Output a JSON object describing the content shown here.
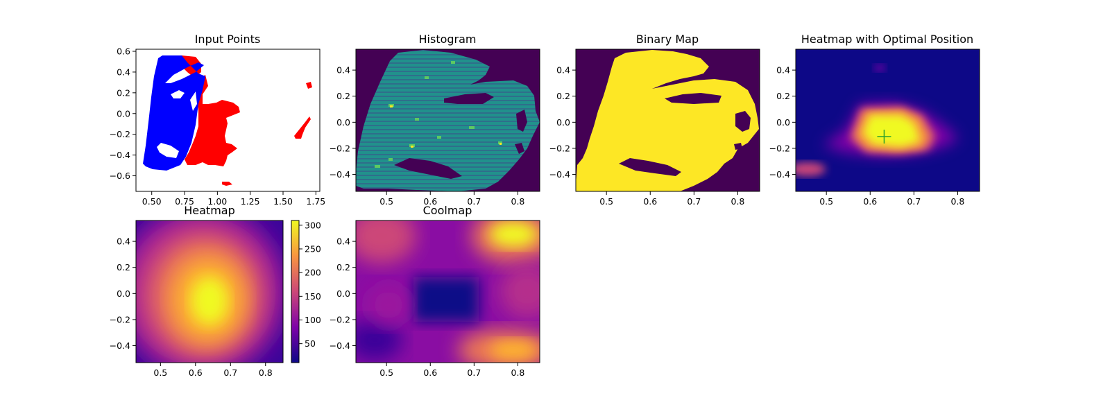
{
  "chart_data": [
    {
      "panel": "input_points",
      "type": "scatter",
      "title": "Input Points",
      "xlim": [
        0.38,
        1.78
      ],
      "ylim": [
        -0.75,
        0.62
      ],
      "xticks": [
        0.5,
        0.75,
        1.0,
        1.25,
        1.5,
        1.75
      ],
      "xtick_labels": [
        "0.50",
        "0.75",
        "1.00",
        "1.25",
        "1.50",
        "1.75"
      ],
      "yticks": [
        -0.6,
        -0.4,
        -0.2,
        0.0,
        0.2,
        0.4,
        0.6
      ],
      "ytick_labels": [
        "−0.6",
        "−0.4",
        "−0.2",
        "0.0",
        "0.2",
        "0.4",
        "0.6"
      ],
      "series": [
        {
          "name": "blue",
          "color": "#0000ff",
          "region": [
            [
              0.44,
              -0.46
            ],
            [
              0.51,
              0.56
            ],
            [
              0.65,
              0.56
            ],
            [
              0.73,
              0.5
            ],
            [
              0.8,
              0.35
            ],
            [
              0.82,
              0.2
            ],
            [
              0.83,
              -0.05
            ],
            [
              0.8,
              -0.3
            ],
            [
              0.72,
              -0.45
            ],
            [
              0.6,
              -0.5
            ],
            [
              0.5,
              -0.5
            ]
          ]
        },
        {
          "name": "red",
          "color": "#ff0000",
          "regions": [
            [
              [
                0.66,
                0.55
              ],
              [
                0.8,
                0.55
              ],
              [
                0.82,
                0.45
              ],
              [
                0.7,
                0.5
              ]
            ],
            [
              [
                0.81,
                0.42
              ],
              [
                0.9,
                0.35
              ],
              [
                0.9,
                0.1
              ],
              [
                0.96,
                0.02
              ],
              [
                1.1,
                0.1
              ],
              [
                1.13,
                0.05
              ],
              [
                1.1,
                -0.05
              ],
              [
                1.12,
                -0.12
              ],
              [
                1.12,
                -0.3
              ],
              [
                1.2,
                -0.35
              ],
              [
                1.1,
                -0.4
              ],
              [
                1.05,
                -0.55
              ],
              [
                0.9,
                -0.55
              ],
              [
                0.78,
                -0.45
              ],
              [
                0.82,
                -0.3
              ],
              [
                0.84,
                -0.1
              ],
              [
                0.85,
                0.2
              ]
            ],
            [
              [
                1.06,
                -0.68
              ],
              [
                1.15,
                -0.68
              ],
              [
                1.12,
                -0.72
              ],
              [
                1.06,
                -0.71
              ]
            ],
            [
              [
                1.6,
                -0.2
              ],
              [
                1.68,
                -0.05
              ],
              [
                1.72,
                -0.02
              ],
              [
                1.66,
                -0.15
              ],
              [
                1.62,
                -0.22
              ]
            ],
            [
              [
                1.69,
                0.3
              ],
              [
                1.72,
                0.3
              ],
              [
                1.72,
                0.26
              ],
              [
                1.69,
                0.27
              ]
            ]
          ]
        }
      ]
    },
    {
      "panel": "histogram",
      "type": "heatmap",
      "title": "Histogram",
      "colormap": "viridis",
      "xlim": [
        0.43,
        0.85
      ],
      "ylim": [
        -0.53,
        0.56
      ],
      "xticks": [
        0.5,
        0.6,
        0.7,
        0.8
      ],
      "xtick_labels": [
        "0.5",
        "0.6",
        "0.7",
        "0.8"
      ],
      "yticks": [
        -0.4,
        -0.2,
        0.0,
        0.2,
        0.4
      ],
      "ytick_labels": [
        "−0.4",
        "−0.2",
        "0.0",
        "0.2",
        "0.4"
      ]
    },
    {
      "panel": "binary_map",
      "type": "heatmap",
      "title": "Binary Map",
      "colormap": "viridis",
      "values": [
        0,
        1
      ],
      "xlim": [
        0.43,
        0.85
      ],
      "ylim": [
        -0.53,
        0.56
      ],
      "xticks": [
        0.5,
        0.6,
        0.7,
        0.8
      ],
      "xtick_labels": [
        "0.5",
        "0.6",
        "0.7",
        "0.8"
      ],
      "yticks": [
        -0.4,
        -0.2,
        0.0,
        0.2,
        0.4
      ],
      "ytick_labels": [
        "−0.4",
        "−0.2",
        "0.0",
        "0.2",
        "0.4"
      ]
    },
    {
      "panel": "heatmap_optimal",
      "type": "heatmap",
      "title": "Heatmap with Optimal Position",
      "colormap": "plasma",
      "optimal_position": {
        "x": 0.632,
        "y": -0.11,
        "marker": "+",
        "color": "#2ca02c"
      },
      "xlim": [
        0.43,
        0.85
      ],
      "ylim": [
        -0.53,
        0.56
      ],
      "xticks": [
        0.5,
        0.6,
        0.7,
        0.8
      ],
      "xtick_labels": [
        "0.5",
        "0.6",
        "0.7",
        "0.8"
      ],
      "yticks": [
        -0.4,
        -0.2,
        0.0,
        0.2,
        0.4
      ],
      "ytick_labels": [
        "−0.4",
        "−0.2",
        "0.0",
        "0.2",
        "0.4"
      ]
    },
    {
      "panel": "heatmap",
      "type": "heatmap",
      "title": "Heatmap",
      "colormap": "plasma",
      "colorbar": {
        "vmin": 10,
        "vmax": 310,
        "ticks": [
          50,
          100,
          150,
          200,
          250,
          300
        ],
        "tick_labels": [
          "50",
          "100",
          "150",
          "200",
          "250",
          "300"
        ]
      },
      "xlim": [
        0.43,
        0.85
      ],
      "ylim": [
        -0.53,
        0.56
      ],
      "xticks": [
        0.5,
        0.6,
        0.7,
        0.8
      ],
      "xtick_labels": [
        "0.5",
        "0.6",
        "0.7",
        "0.8"
      ],
      "yticks": [
        -0.4,
        -0.2,
        0.0,
        0.2,
        0.4
      ],
      "ytick_labels": [
        "−0.4",
        "−0.2",
        "0.0",
        "0.2",
        "0.4"
      ]
    },
    {
      "panel": "coolmap",
      "type": "heatmap",
      "title": "Coolmap",
      "colormap": "plasma",
      "xlim": [
        0.43,
        0.85
      ],
      "ylim": [
        -0.53,
        0.56
      ],
      "xticks": [
        0.5,
        0.6,
        0.7,
        0.8
      ],
      "xtick_labels": [
        "0.5",
        "0.6",
        "0.7",
        "0.8"
      ],
      "yticks": [
        -0.4,
        -0.2,
        0.0,
        0.2,
        0.4
      ],
      "ytick_labels": [
        "−0.4",
        "−0.2",
        "0.0",
        "0.2",
        "0.4"
      ]
    }
  ]
}
